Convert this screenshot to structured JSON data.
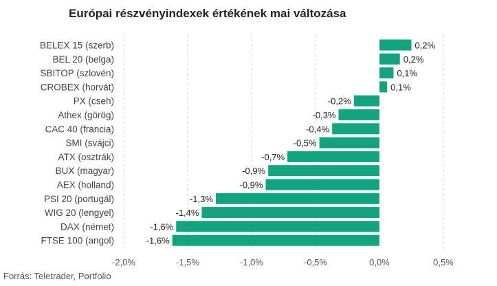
{
  "chart_data": {
    "type": "bar",
    "orientation": "horizontal",
    "title": "Európai részvényindexek értékének mai változása",
    "source": "Forrás: Teletrader, Portfolio",
    "bar_color": "#12a37f",
    "xlim": [
      -2.0,
      0.5
    ],
    "x_ticks": [
      -2.0,
      -1.5,
      -1.0,
      -0.5,
      0.0,
      0.5
    ],
    "x_tick_labels": [
      "-2,0%",
      "-1,5%",
      "-1,0%",
      "-0,5%",
      "0,0%",
      "0,5%"
    ],
    "categories": [
      "BELEX 15 (szerb)",
      "BEL 20 (belga)",
      "SBITOP (szlovén)",
      "CROBEX (horvát)",
      "PX (cseh)",
      "Athex (görög)",
      "CAC 40 (francia)",
      "SMI (svájci)",
      "ATX (osztrák)",
      "BUX (magyar)",
      "AEX (holland)",
      "PSI 20 (portugál)",
      "WIG 20 (lengyel)",
      "DAX (német)",
      "FTSE 100 (angol)"
    ],
    "values": [
      0.25,
      0.16,
      0.11,
      0.06,
      -0.2,
      -0.32,
      -0.37,
      -0.47,
      -0.72,
      -0.87,
      -0.89,
      -1.28,
      -1.39,
      -1.59,
      -1.62
    ],
    "value_labels": [
      "0,2%",
      "0,2%",
      "0,1%",
      "0,1%",
      "-0,2%",
      "-0,3%",
      "-0,4%",
      "-0,5%",
      "-0,7%",
      "-0,9%",
      "-0,9%",
      "-1,3%",
      "-1,4%",
      "-1,6%",
      "-1,6%"
    ]
  }
}
